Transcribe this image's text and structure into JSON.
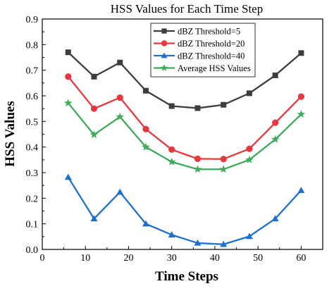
{
  "chart_data": {
    "type": "line",
    "title": "HSS Values for Each Time Step",
    "xlabel": "Time Steps",
    "ylabel": "HSS Values",
    "xlim": [
      0,
      65
    ],
    "ylim": [
      0,
      0.9
    ],
    "xticks": [
      "0",
      "10",
      "20",
      "30",
      "40",
      "50",
      "60"
    ],
    "yticks": [
      "0.0",
      "0.1",
      "0.2",
      "0.3",
      "0.4",
      "0.5",
      "0.6",
      "0.7",
      "0.8",
      "0.9"
    ],
    "grid": false,
    "legend_position": "top-left",
    "x": [
      6,
      12,
      18,
      24,
      30,
      36,
      42,
      48,
      54,
      60
    ],
    "series": [
      {
        "name": "dBZ Threshold=5",
        "color": "#3d3d3d",
        "marker": "square",
        "values": [
          0.77,
          0.675,
          0.73,
          0.62,
          0.56,
          0.552,
          0.565,
          0.61,
          0.68,
          0.767
        ]
      },
      {
        "name": "dBZ Threshold=20",
        "color": "#e8383d",
        "marker": "circle",
        "values": [
          0.675,
          0.55,
          0.593,
          0.47,
          0.39,
          0.354,
          0.353,
          0.393,
          0.495,
          0.597
        ]
      },
      {
        "name": "dBZ Threshold=40",
        "color": "#1f6fd1",
        "marker": "triangle",
        "values": [
          0.282,
          0.12,
          0.224,
          0.1,
          0.057,
          0.025,
          0.02,
          0.051,
          0.12,
          0.231
        ]
      },
      {
        "name": "Average HSS Values",
        "color": "#3cab5a",
        "marker": "star",
        "values": [
          0.572,
          0.448,
          0.518,
          0.4,
          0.342,
          0.313,
          0.313,
          0.35,
          0.43,
          0.528
        ]
      }
    ]
  }
}
